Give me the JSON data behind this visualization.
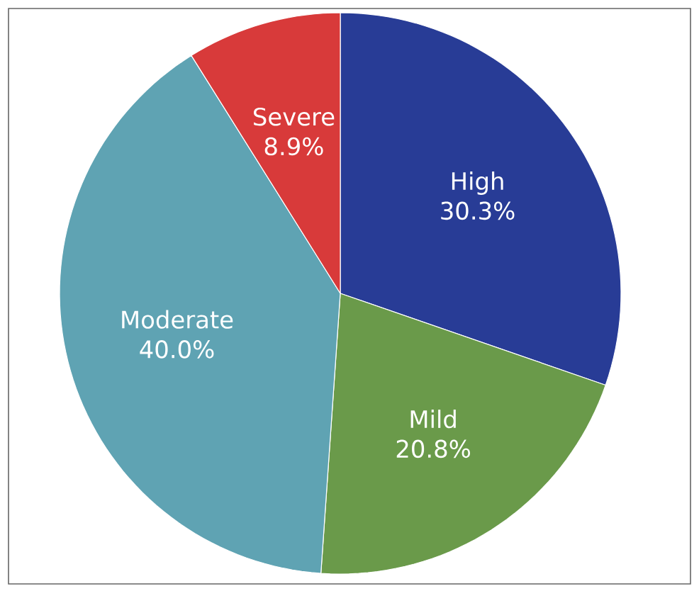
{
  "chart_data": {
    "type": "pie",
    "categories": [
      "High",
      "Mild",
      "Moderate",
      "Severe"
    ],
    "values": [
      30.3,
      20.8,
      40.0,
      8.9
    ],
    "value_labels": [
      "30.3%",
      "20.8%",
      "40.0%",
      "8.9%"
    ],
    "colors": [
      "#283c96",
      "#6a9a4a",
      "#5fa3b3",
      "#d83a3a"
    ]
  }
}
